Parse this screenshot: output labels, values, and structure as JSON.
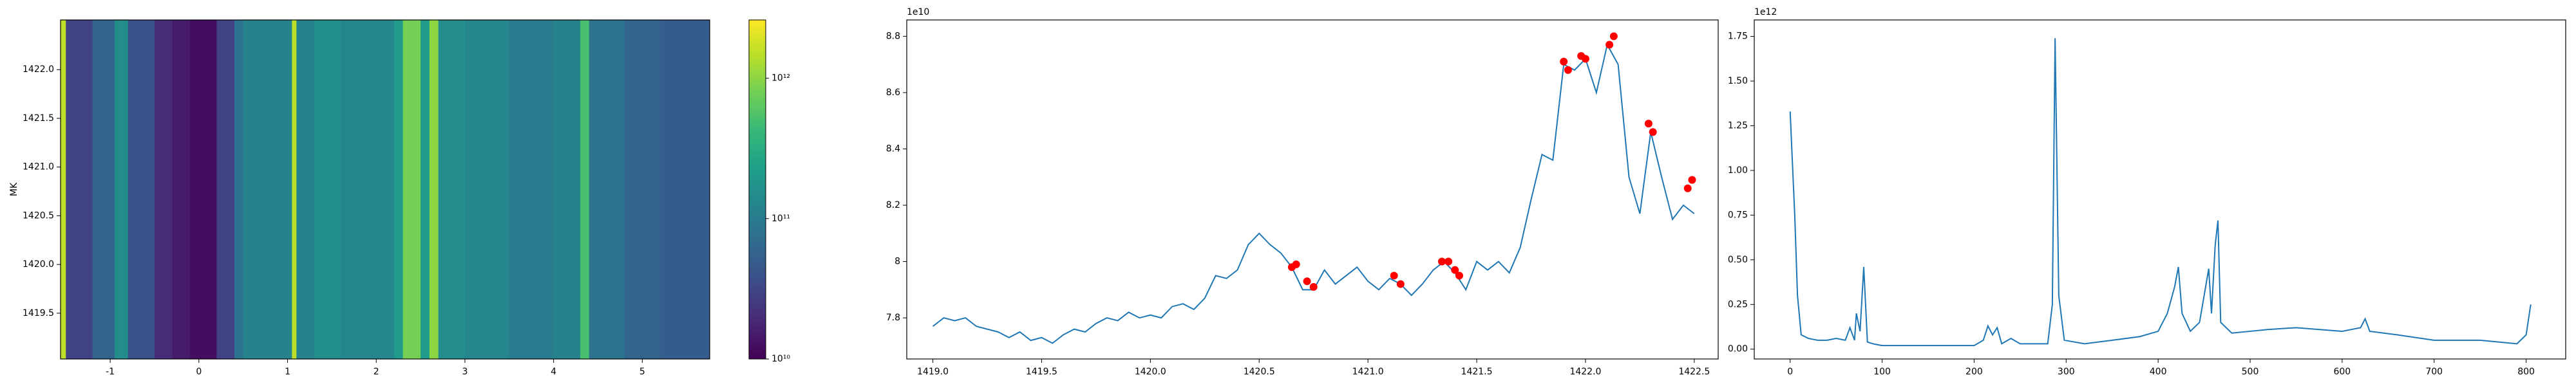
{
  "chart_data": [
    {
      "type": "heatmap",
      "ylabel": "MK",
      "stripe_edges": [
        -1.56,
        -1.5,
        -1.2,
        -0.95,
        -0.8,
        -0.5,
        -0.3,
        -0.1,
        0.2,
        0.4,
        0.5,
        1.05,
        1.1,
        1.3,
        1.6,
        2.2,
        2.3,
        2.5,
        2.6,
        2.7,
        3.0,
        3.5,
        4.0,
        4.3,
        4.4,
        4.8,
        5.2,
        5.76
      ],
      "values": [
        1500000000000.0,
        30000000000.0,
        60000000000.0,
        150000000000.0,
        40000000000.0,
        20000000000.0,
        15000000000.0,
        12000000000.0,
        30000000000.0,
        80000000000.0,
        120000000000.0,
        1500000000000.0,
        120000000000.0,
        160000000000.0,
        130000000000.0,
        200000000000.0,
        800000000000.0,
        200000000000.0,
        1000000000000.0,
        150000000000.0,
        130000000000.0,
        100000000000.0,
        120000000000.0,
        500000000000.0,
        80000000000.0,
        60000000000.0,
        50000000000.0
      ],
      "xlim": [
        -1.56,
        5.76
      ],
      "xticks": [
        -1,
        0,
        1,
        2,
        3,
        4,
        5
      ],
      "ylim": [
        1419.03,
        1422.51
      ],
      "yticks": [
        {
          "value": 1419.5,
          "label": "1419.5"
        },
        {
          "value": 1420,
          "label": "1420.0"
        },
        {
          "value": 1420.5,
          "label": "1420.5"
        },
        {
          "value": 1421,
          "label": "1421.0"
        },
        {
          "value": 1421.5,
          "label": "1421.5"
        },
        {
          "value": 1422,
          "label": "1422.0"
        }
      ],
      "colormap": "viridis",
      "log_color": true,
      "clim": [
        10000000000.0,
        2600000000000.0
      ],
      "cticks": [
        {
          "value": 10000000000.0,
          "label": "10¹⁰"
        },
        {
          "value": 100000000000.0,
          "label": "10¹¹"
        },
        {
          "value": 1000000000000.0,
          "label": "10¹²"
        }
      ]
    },
    {
      "type": "line",
      "offset_label": "1e10",
      "xlim": [
        1418.88,
        1422.61
      ],
      "xticks": [
        {
          "value": 1419,
          "label": "1419.0"
        },
        {
          "value": 1419.5,
          "label": "1419.5"
        },
        {
          "value": 1420,
          "label": "1420.0"
        },
        {
          "value": 1420.5,
          "label": "1420.5"
        },
        {
          "value": 1421,
          "label": "1421.0"
        },
        {
          "value": 1421.5,
          "label": "1421.5"
        },
        {
          "value": 1422,
          "label": "1422.0"
        },
        {
          "value": 1422.5,
          "label": "1422.5"
        }
      ],
      "ylim": [
        7.654,
        8.858
      ],
      "yticks": [
        7.8,
        8.0,
        8.2,
        8.4,
        8.6,
        8.8
      ],
      "yticks_labels_fix": null,
      "series": [
        {
          "color": "#1f77b4",
          "style": "line",
          "x": [
            1419.0,
            1419.05,
            1419.1,
            1419.15,
            1419.2,
            1419.25,
            1419.3,
            1419.35,
            1419.4,
            1419.45,
            1419.5,
            1419.55,
            1419.6,
            1419.65,
            1419.7,
            1419.75,
            1419.8,
            1419.85,
            1419.9,
            1419.95,
            1420.0,
            1420.05,
            1420.1,
            1420.15,
            1420.2,
            1420.25,
            1420.3,
            1420.35,
            1420.4,
            1420.45,
            1420.5,
            1420.55,
            1420.6,
            1420.65,
            1420.7,
            1420.75,
            1420.8,
            1420.85,
            1420.9,
            1420.95,
            1421.0,
            1421.05,
            1421.1,
            1421.15,
            1421.2,
            1421.25,
            1421.3,
            1421.35,
            1421.4,
            1421.45,
            1421.5,
            1421.55,
            1421.6,
            1421.65,
            1421.7,
            1421.75,
            1421.8,
            1421.85,
            1421.9,
            1421.95,
            1422.0,
            1422.05,
            1422.1,
            1422.15,
            1422.2,
            1422.25,
            1422.3,
            1422.35,
            1422.4,
            1422.45,
            1422.5
          ],
          "values": [
            7.77,
            7.8,
            7.79,
            7.8,
            7.77,
            7.76,
            7.75,
            7.73,
            7.75,
            7.72,
            7.73,
            7.71,
            7.74,
            7.76,
            7.75,
            7.78,
            7.8,
            7.79,
            7.82,
            7.8,
            7.81,
            7.8,
            7.84,
            7.85,
            7.83,
            7.87,
            7.95,
            7.94,
            7.97,
            8.06,
            8.1,
            8.06,
            8.03,
            7.98,
            7.9,
            7.9,
            7.97,
            7.92,
            7.95,
            7.98,
            7.93,
            7.9,
            7.94,
            7.92,
            7.88,
            7.92,
            7.97,
            8.0,
            7.96,
            7.9,
            8.0,
            7.97,
            8.0,
            7.96,
            8.05,
            8.22,
            8.38,
            8.36,
            8.7,
            8.68,
            8.72,
            8.6,
            8.77,
            8.7,
            8.3,
            8.17,
            8.46,
            8.3,
            8.15,
            8.2,
            8.17
          ]
        },
        {
          "color": "#ff0000",
          "style": "markers",
          "x": [
            1420.65,
            1420.67,
            1420.72,
            1420.75,
            1421.12,
            1421.15,
            1421.34,
            1421.37,
            1421.4,
            1421.42,
            1421.9,
            1421.92,
            1421.98,
            1422.0,
            1422.11,
            1422.13,
            1422.29,
            1422.31,
            1422.47,
            1422.49
          ],
          "values": [
            7.98,
            7.99,
            7.93,
            7.91,
            7.95,
            7.92,
            8.0,
            8.0,
            7.97,
            7.95,
            8.71,
            8.68,
            8.73,
            8.72,
            8.77,
            8.8,
            8.49,
            8.46,
            8.26,
            8.29
          ]
        }
      ]
    },
    {
      "type": "line",
      "offset_label": "1e12",
      "xlim": [
        -39,
        843
      ],
      "xticks": [
        0,
        100,
        200,
        300,
        400,
        500,
        600,
        700,
        800
      ],
      "ylim": [
        -0.055,
        1.842
      ],
      "yticks": [
        {
          "value": 0,
          "label": "0.00"
        },
        {
          "value": 0.25,
          "label": "0.25"
        },
        {
          "value": 0.5,
          "label": "0.50"
        },
        {
          "value": 0.75,
          "label": "0.75"
        },
        {
          "value": 1,
          "label": "1.00"
        },
        {
          "value": 1.25,
          "label": "1.25"
        },
        {
          "value": 1.5,
          "label": "1.50"
        },
        {
          "value": 1.75,
          "label": "1.75"
        }
      ],
      "series": [
        {
          "color": "#1f77b4",
          "style": "line",
          "x": [
            0,
            5,
            8,
            12,
            20,
            30,
            40,
            50,
            60,
            65,
            70,
            72,
            76,
            80,
            84,
            90,
            100,
            150,
            200,
            210,
            215,
            220,
            225,
            230,
            240,
            250,
            280,
            285,
            288,
            292,
            298,
            320,
            350,
            380,
            400,
            410,
            418,
            422,
            426,
            435,
            445,
            450,
            455,
            458,
            462,
            465,
            468,
            480,
            500,
            520,
            550,
            600,
            620,
            625,
            630,
            660,
            700,
            750,
            790,
            800,
            805
          ],
          "values": [
            1.33,
            0.75,
            0.3,
            0.08,
            0.06,
            0.05,
            0.05,
            0.06,
            0.05,
            0.12,
            0.05,
            0.2,
            0.1,
            0.46,
            0.04,
            0.03,
            0.02,
            0.02,
            0.02,
            0.05,
            0.13,
            0.08,
            0.12,
            0.03,
            0.06,
            0.03,
            0.03,
            0.25,
            1.74,
            0.3,
            0.05,
            0.03,
            0.05,
            0.07,
            0.1,
            0.2,
            0.35,
            0.46,
            0.2,
            0.1,
            0.15,
            0.3,
            0.45,
            0.2,
            0.58,
            0.72,
            0.15,
            0.09,
            0.1,
            0.11,
            0.12,
            0.1,
            0.12,
            0.17,
            0.1,
            0.08,
            0.05,
            0.05,
            0.03,
            0.08,
            0.25
          ]
        }
      ]
    }
  ]
}
